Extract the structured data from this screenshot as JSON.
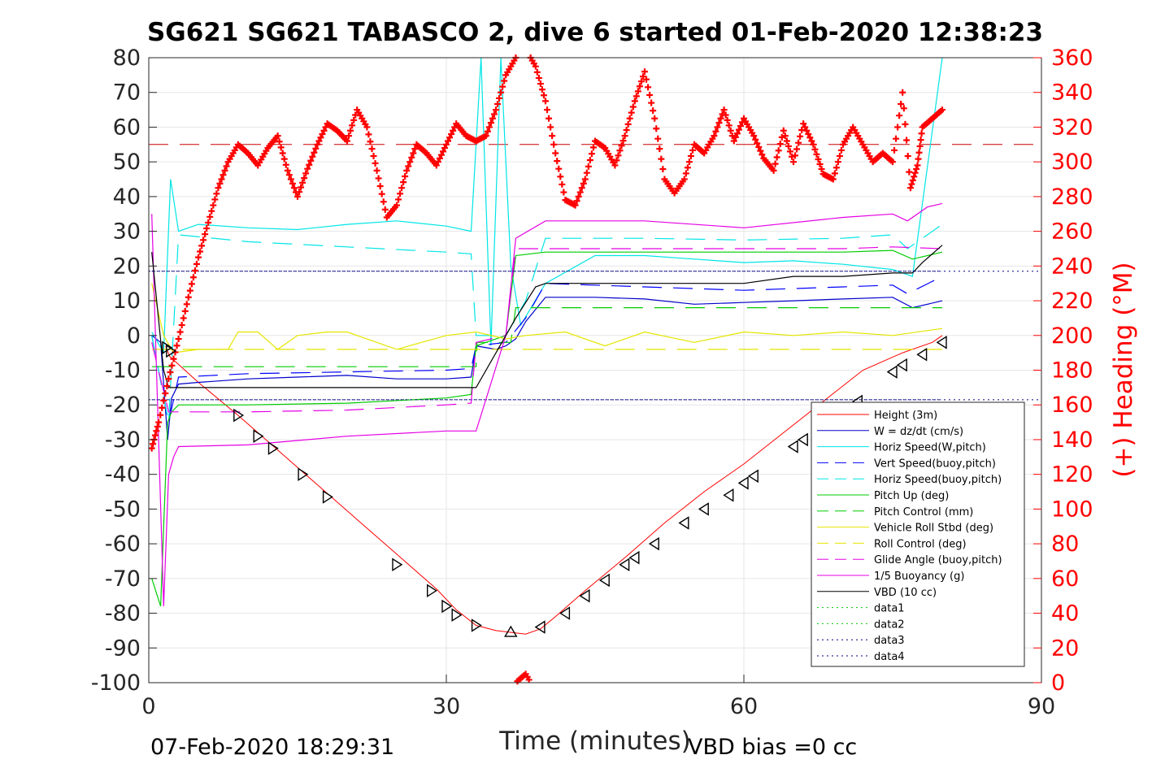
{
  "chart_data": {
    "type": "line",
    "title": "SG621 SG621 TABASCO 2, dive 6 started 01-Feb-2020 12:38:23",
    "xlabel": "Time (minutes)",
    "ylabel_right": "(+) Heading (°M)",
    "xlim": [
      0,
      90
    ],
    "ylim_left": [
      -100,
      80
    ],
    "ylim_right": [
      0,
      360
    ],
    "x_ticks": [
      "0",
      "30",
      "60",
      "90"
    ],
    "y_ticks_left": [
      "80",
      "70",
      "60",
      "50",
      "40",
      "30",
      "20",
      "10",
      "0",
      "-10",
      "-20",
      "-30",
      "-40",
      "-50",
      "-60",
      "-70",
      "-80",
      "-90",
      "-100"
    ],
    "y_ticks_right": [
      "360",
      "340",
      "320",
      "300",
      "280",
      "260",
      "240",
      "220",
      "200",
      "180",
      "160",
      "140",
      "120",
      "100",
      "80",
      "60",
      "40",
      "20",
      "0"
    ],
    "grid": true,
    "legend_position": "bottom-right",
    "footer_left": "07-Feb-2020 18:29:31",
    "footer_right": "VBD bias =0 cc",
    "reference_lines": [
      {
        "name": "heading-target",
        "axis": "right",
        "value": 310,
        "color": "#cc0000",
        "style": "dashed"
      },
      {
        "name": "data3",
        "axis": "left",
        "value": 18.5,
        "color": "#000080",
        "style": "dotted"
      },
      {
        "name": "data4",
        "axis": "left",
        "value": -18.5,
        "color": "#000080",
        "style": "dotted"
      }
    ],
    "series": [
      {
        "name": "Height (3m)",
        "color": "#ff0000",
        "style": "solid",
        "x": [
          1.7,
          2.1,
          5,
          9,
          13,
          17,
          21,
          25,
          29,
          31,
          33,
          35,
          36.5,
          38,
          39.5,
          41,
          44,
          48,
          52,
          56,
          60,
          64,
          68,
          72,
          76,
          79,
          80
        ],
        "y": [
          -3,
          -6,
          -13.5,
          -23,
          -33,
          -43,
          -53,
          -63,
          -73,
          -79,
          -83.5,
          -85,
          -85.5,
          -86,
          -84.5,
          -81,
          -73.5,
          -64,
          -54,
          -45,
          -37,
          -28,
          -19,
          -10,
          -5,
          -2,
          0
        ]
      },
      {
        "name": "W = dz/dt (cm/s)",
        "color": "#0000cc",
        "style": "solid",
        "x": [
          0.3,
          1.2,
          1.9,
          2.3,
          3,
          5,
          10,
          15,
          20,
          25,
          30,
          32.5,
          33,
          35,
          36,
          37,
          38,
          40,
          45,
          50,
          55,
          60,
          65,
          70,
          75,
          77,
          80
        ],
        "y": [
          0,
          -2,
          -30,
          -18,
          -14,
          -13.5,
          -12.5,
          -12,
          -11.5,
          -12.5,
          -12.5,
          -12,
          -3,
          -4,
          -3,
          -1,
          4,
          11,
          11,
          10.5,
          9,
          9.5,
          10,
          10.5,
          11,
          8,
          10
        ]
      },
      {
        "name": "Horiz Speed(W,pitch)",
        "color": "#00e5e5",
        "style": "solid",
        "x": [
          0.3,
          1.5,
          2.2,
          3,
          4,
          5,
          10,
          15,
          20,
          25,
          30,
          32.5,
          33.5,
          34.5,
          35.5,
          36.5,
          37.5,
          40,
          45,
          50,
          55,
          60,
          65,
          70,
          75,
          77,
          80
        ],
        "y": [
          1,
          -5,
          45,
          30,
          31,
          32,
          31,
          30.5,
          32,
          33,
          31.5,
          30,
          80,
          -3,
          80,
          20,
          3,
          15,
          23,
          23,
          22,
          21,
          21.5,
          20.5,
          19,
          17,
          80
        ]
      },
      {
        "name": "Vert Speed(buoy,pitch)",
        "color": "#0000ff",
        "style": "dashed",
        "x": [
          0.3,
          2,
          3,
          10,
          20,
          30,
          32.5,
          33,
          36,
          38,
          40,
          50,
          60,
          70,
          75,
          76.5,
          80
        ],
        "y": [
          0,
          -25,
          -12,
          -11,
          -10.5,
          -10,
          -9.5,
          -3,
          -2,
          5,
          15,
          14,
          13,
          14,
          14.5,
          12,
          17
        ]
      },
      {
        "name": "Horiz Speed(buoy,pitch)",
        "color": "#00e5e5",
        "style": "dashed",
        "x": [
          0.3,
          2,
          3,
          10,
          20,
          30,
          32.5,
          33,
          36,
          38,
          40,
          50,
          60,
          70,
          75,
          76.5,
          80
        ],
        "y": [
          0,
          -25,
          29,
          27,
          25.5,
          24,
          23.5,
          0,
          0,
          10,
          28,
          28,
          27.5,
          28,
          29,
          25,
          32
        ]
      },
      {
        "name": "Pitch Up (deg)",
        "color": "#00cc00",
        "style": "solid",
        "x": [
          0.3,
          1.2,
          1.9,
          2.3,
          3,
          10,
          20,
          30,
          32.5,
          33,
          36,
          37,
          40,
          50,
          60,
          70,
          75,
          77,
          80
        ],
        "y": [
          -70,
          -78,
          -25,
          -22,
          -20,
          -20,
          -19.5,
          -18,
          -17,
          -3,
          0,
          23,
          24,
          24,
          24,
          24,
          24.5,
          22,
          24
        ]
      },
      {
        "name": "Pitch Control (mm)",
        "color": "#00cc00",
        "style": "dashed",
        "x": [
          0.3,
          33,
          33.1,
          36.5,
          37,
          80
        ],
        "y": [
          -9,
          -9,
          -2,
          -2,
          8,
          8
        ]
      },
      {
        "name": "Vehicle Roll Stbd (deg)",
        "color": "#e5e500",
        "style": "solid",
        "x": [
          0.3,
          1.5,
          2.5,
          5,
          8,
          9,
          11,
          13,
          15,
          18,
          20,
          25,
          30,
          33,
          36,
          38,
          42,
          46,
          50,
          55,
          60,
          65,
          70,
          75,
          80
        ],
        "y": [
          15,
          0,
          -5,
          -4,
          -4,
          1,
          1,
          -4,
          0,
          1,
          1,
          -4,
          0,
          1,
          -1,
          0,
          1,
          -3,
          1,
          -2,
          1,
          0,
          1,
          0,
          2
        ]
      },
      {
        "name": "Roll Control (deg)",
        "color": "#e5e500",
        "style": "dashed",
        "x": [
          0.3,
          80
        ],
        "y": [
          -4,
          -4
        ]
      },
      {
        "name": "Glide Angle (buoy,pitch)",
        "color": "#e500e5",
        "style": "dashed",
        "x": [
          0.3,
          2,
          3,
          10,
          20,
          30,
          32.5,
          33,
          36,
          37,
          40,
          50,
          60,
          70,
          75,
          80
        ],
        "y": [
          -2,
          -22,
          -22,
          -22,
          -21.5,
          -20,
          -19.5,
          -2,
          0,
          25,
          25,
          25,
          25,
          25,
          25.5,
          25
        ]
      },
      {
        "name": "1/5 Buoyancy (g)",
        "color": "#e500e5",
        "style": "solid",
        "x": [
          0.3,
          1.5,
          2,
          2.5,
          3,
          10,
          20,
          30,
          33,
          36,
          37,
          40,
          50,
          60,
          70,
          75,
          76.5,
          78.5,
          80
        ],
        "y": [
          35,
          -78,
          -40,
          -35,
          -32,
          -31.5,
          -29,
          -27.5,
          -27.5,
          0,
          28,
          33,
          33,
          31,
          34,
          35,
          33,
          37,
          38
        ]
      },
      {
        "name": "VBD (10 cc)",
        "color": "#000000",
        "style": "solid",
        "x": [
          0.3,
          1.5,
          2,
          10,
          20,
          30,
          33,
          36,
          37,
          39,
          40,
          50,
          60,
          65,
          70,
          75,
          77,
          78,
          80
        ],
        "y": [
          24,
          -10,
          -15,
          -15,
          -15,
          -15,
          -15,
          0,
          5,
          14,
          15,
          15,
          15,
          17,
          17,
          18,
          18,
          21,
          26
        ]
      },
      {
        "name": "data1",
        "color": "#00cc00",
        "style": "dotted",
        "x": [],
        "y": []
      },
      {
        "name": "data2",
        "color": "#00cc00",
        "style": "dotted",
        "x": [],
        "y": []
      },
      {
        "name": "data3",
        "color": "#000080",
        "style": "dotted",
        "x": [
          0.3,
          80
        ],
        "y": [
          18.5,
          18.5
        ]
      },
      {
        "name": "data4",
        "color": "#000080",
        "style": "dotted",
        "x": [
          0.3,
          80
        ],
        "y": [
          -18.5,
          -18.5
        ]
      }
    ],
    "heading_series": {
      "name": "Heading",
      "axis": "right",
      "color": "#ff0000",
      "marker": "+",
      "x": [
        0.3,
        1,
        2,
        3,
        4,
        5,
        6,
        7,
        8,
        9,
        10,
        11,
        12,
        13,
        14,
        15,
        16,
        17,
        18,
        19,
        20,
        21,
        22,
        23,
        24,
        25,
        26,
        27,
        28,
        29,
        30,
        31,
        32,
        33,
        34,
        35,
        36,
        37,
        38,
        39,
        40,
        41,
        42,
        43,
        44,
        45,
        46,
        47,
        48,
        49,
        50,
        51,
        52,
        53,
        54,
        55,
        56,
        57,
        58,
        59,
        60,
        61,
        62,
        63,
        64,
        65,
        66,
        67,
        68,
        69,
        70,
        71,
        72,
        73,
        74,
        75,
        76,
        76.8,
        77.5,
        78,
        79,
        80
      ],
      "y": [
        135,
        150,
        175,
        198,
        222,
        245,
        265,
        285,
        300,
        310,
        305,
        298,
        308,
        315,
        295,
        280,
        296,
        310,
        322,
        318,
        312,
        330,
        320,
        295,
        268,
        275,
        295,
        310,
        305,
        298,
        310,
        322,
        315,
        312,
        315,
        330,
        350,
        360,
        365,
        355,
        335,
        305,
        278,
        275,
        290,
        312,
        308,
        298,
        315,
        335,
        352,
        325,
        290,
        282,
        290,
        310,
        305,
        315,
        330,
        312,
        325,
        315,
        302,
        295,
        318,
        300,
        322,
        310,
        293,
        290,
        310,
        320,
        310,
        300,
        305,
        300,
        340,
        285,
        298,
        320,
        325,
        330
      ]
    },
    "dive_markers": {
      "color": "#000000",
      "marker": "triangle",
      "x": [
        1.8,
        2.2,
        9,
        11,
        12.5,
        15.5,
        18,
        25,
        28.5,
        30,
        31,
        33,
        36.5,
        39.5,
        42,
        44,
        46,
        48,
        49,
        51,
        54,
        56,
        58.5,
        60,
        61,
        65,
        66,
        71.5,
        75,
        76,
        78,
        80
      ],
      "y": [
        -3.5,
        -4.5,
        -23,
        -29,
        -32.5,
        -40,
        -46.5,
        -66,
        -73.5,
        -78,
        -80.5,
        -83.5,
        -85.5,
        -84,
        -80,
        -75,
        -70.5,
        -66,
        -64,
        -60,
        -54,
        -50,
        -46,
        -42.5,
        -40.5,
        -32,
        -30,
        -19,
        -10.5,
        -8.5,
        -5.5,
        -2
      ]
    }
  }
}
